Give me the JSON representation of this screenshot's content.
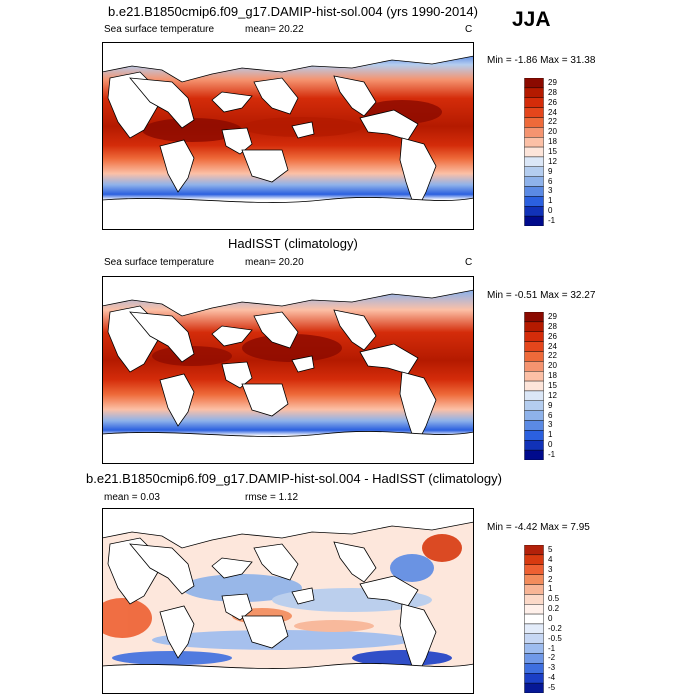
{
  "season": "JJA",
  "panels": [
    {
      "id": "model",
      "title": "b.e21.B1850cmip6.f09_g17.DAMIP-hist-sol.004 (yrs 1990-2014)",
      "left_label": "Sea surface temperature",
      "stat1": "mean=  20.22",
      "stat2": "",
      "units": "C",
      "minmax": "Min =  -1.86 Max =  31.38",
      "kind": "abs",
      "colorbar_labels": [
        "29",
        "28",
        "26",
        "24",
        "22",
        "20",
        "18",
        "15",
        "12",
        "9",
        "6",
        "3",
        "1",
        "0",
        "-1"
      ]
    },
    {
      "id": "obs",
      "title": "HadISST (climatology)",
      "left_label": "Sea surface temperature",
      "stat1": "mean=  20.20",
      "stat2": "",
      "units": "C",
      "minmax": "Min =  -0.51 Max =  32.27",
      "kind": "abs",
      "colorbar_labels": [
        "29",
        "28",
        "26",
        "24",
        "22",
        "20",
        "18",
        "15",
        "12",
        "9",
        "6",
        "3",
        "1",
        "0",
        "-1"
      ]
    },
    {
      "id": "diff",
      "title": "b.e21.B1850cmip6.f09_g17.DAMIP-hist-sol.004 - HadISST (climatology)",
      "left_label": "",
      "stat1": "mean =   0.03",
      "stat2": "rmse =   1.12",
      "units": "",
      "minmax": "Min =  -4.42 Max =   7.95",
      "kind": "diff",
      "colorbar_labels": [
        "5",
        "4",
        "3",
        "2",
        "1",
        "0.5",
        "0.2",
        "0",
        "-0.2",
        "-0.5",
        "-1",
        "-2",
        "-3",
        "-4",
        "-5"
      ]
    }
  ],
  "colors": {
    "abs": [
      "#8b0a00",
      "#b41a00",
      "#d42c0a",
      "#e4461c",
      "#ee6a3a",
      "#f59470",
      "#fcc0a6",
      "#fde5da",
      "#dbe7f7",
      "#b4cdef",
      "#8eb2ea",
      "#5b8ae4",
      "#2b60df",
      "#1132b8",
      "#000a8c"
    ],
    "diff": [
      "#b3210a",
      "#d83a10",
      "#ee6032",
      "#f38c5c",
      "#f8b596",
      "#fcd9c8",
      "#fff0ea",
      "#ffffff",
      "#e3ecfa",
      "#c6d7f4",
      "#9dbcef",
      "#7099e8",
      "#3e6fe0",
      "#1b3fc6",
      "#061896"
    ]
  }
}
